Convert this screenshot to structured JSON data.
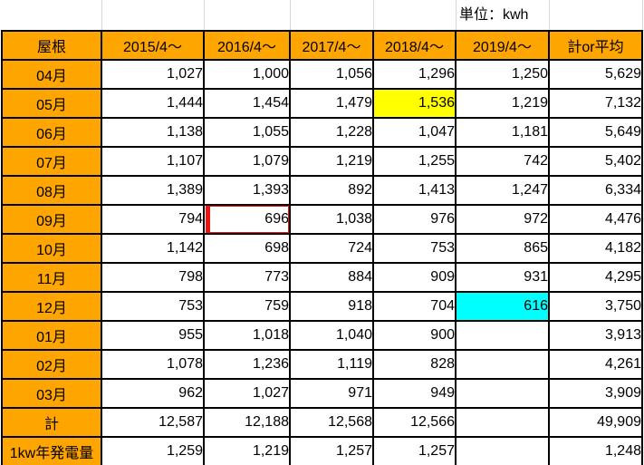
{
  "unit_label": "単位：kwh",
  "colors": {
    "header_bg": "#FFA500",
    "highlight_yellow": "#FFFF00",
    "highlight_cyan": "#00FFFF",
    "annotation_red": "#ED1111",
    "table_border": "#000000",
    "gridline": "#D9D9D9"
  },
  "table": {
    "columns": [
      "屋根",
      "2015/4～",
      "2016/4～",
      "2017/4～",
      "2018/4～",
      "2019/4～",
      "計or平均"
    ],
    "rows": [
      {
        "label": "04月",
        "values": [
          "1,027",
          "1,000",
          "1,056",
          "1,296",
          "1,250",
          "5,629"
        ]
      },
      {
        "label": "05月",
        "values": [
          "1,444",
          "1,454",
          "1,479",
          "1,536",
          "1,219",
          "7,132"
        ]
      },
      {
        "label": "06月",
        "values": [
          "1,138",
          "1,055",
          "1,228",
          "1,047",
          "1,181",
          "5,649"
        ]
      },
      {
        "label": "07月",
        "values": [
          "1,107",
          "1,079",
          "1,219",
          "1,255",
          "742",
          "5,402"
        ]
      },
      {
        "label": "08月",
        "values": [
          "1,389",
          "1,393",
          "892",
          "1,413",
          "1,247",
          "6,334"
        ]
      },
      {
        "label": "09月",
        "values": [
          "794",
          "696",
          "1,038",
          "976",
          "972",
          "4,476"
        ]
      },
      {
        "label": "10月",
        "values": [
          "1,142",
          "698",
          "724",
          "753",
          "865",
          "4,182"
        ]
      },
      {
        "label": "11月",
        "values": [
          "798",
          "773",
          "884",
          "909",
          "931",
          "4,295"
        ]
      },
      {
        "label": "12月",
        "values": [
          "753",
          "759",
          "918",
          "704",
          "616",
          "3,750"
        ]
      },
      {
        "label": "01月",
        "values": [
          "955",
          "1,018",
          "1,040",
          "900",
          "",
          "3,913"
        ]
      },
      {
        "label": "02月",
        "values": [
          "1,078",
          "1,236",
          "1,119",
          "828",
          "",
          "4,261"
        ]
      },
      {
        "label": "03月",
        "values": [
          "962",
          "1,027",
          "971",
          "949",
          "",
          "3,909"
        ]
      },
      {
        "label": "計",
        "values": [
          "12,587",
          "12,188",
          "12,568",
          "12,566",
          "",
          "49,909"
        ]
      },
      {
        "label": "1kw年発電量",
        "values": [
          "1,259",
          "1,219",
          "1,257",
          "1,257",
          "",
          "1,248"
        ]
      }
    ],
    "highlights": {
      "yellow_cell": {
        "row_label": "05月",
        "column": "2018/4～",
        "row_index": 1,
        "value_index": 3,
        "value": "1,536"
      },
      "cyan_cell": {
        "row_label": "12月",
        "column": "2019/4～",
        "row_index": 8,
        "value_index": 4,
        "value": "616"
      },
      "red_outline_cell": {
        "row_label": "09月",
        "column": "2016/4～",
        "row_index": 5,
        "value_index": 1,
        "value": "696"
      }
    }
  }
}
